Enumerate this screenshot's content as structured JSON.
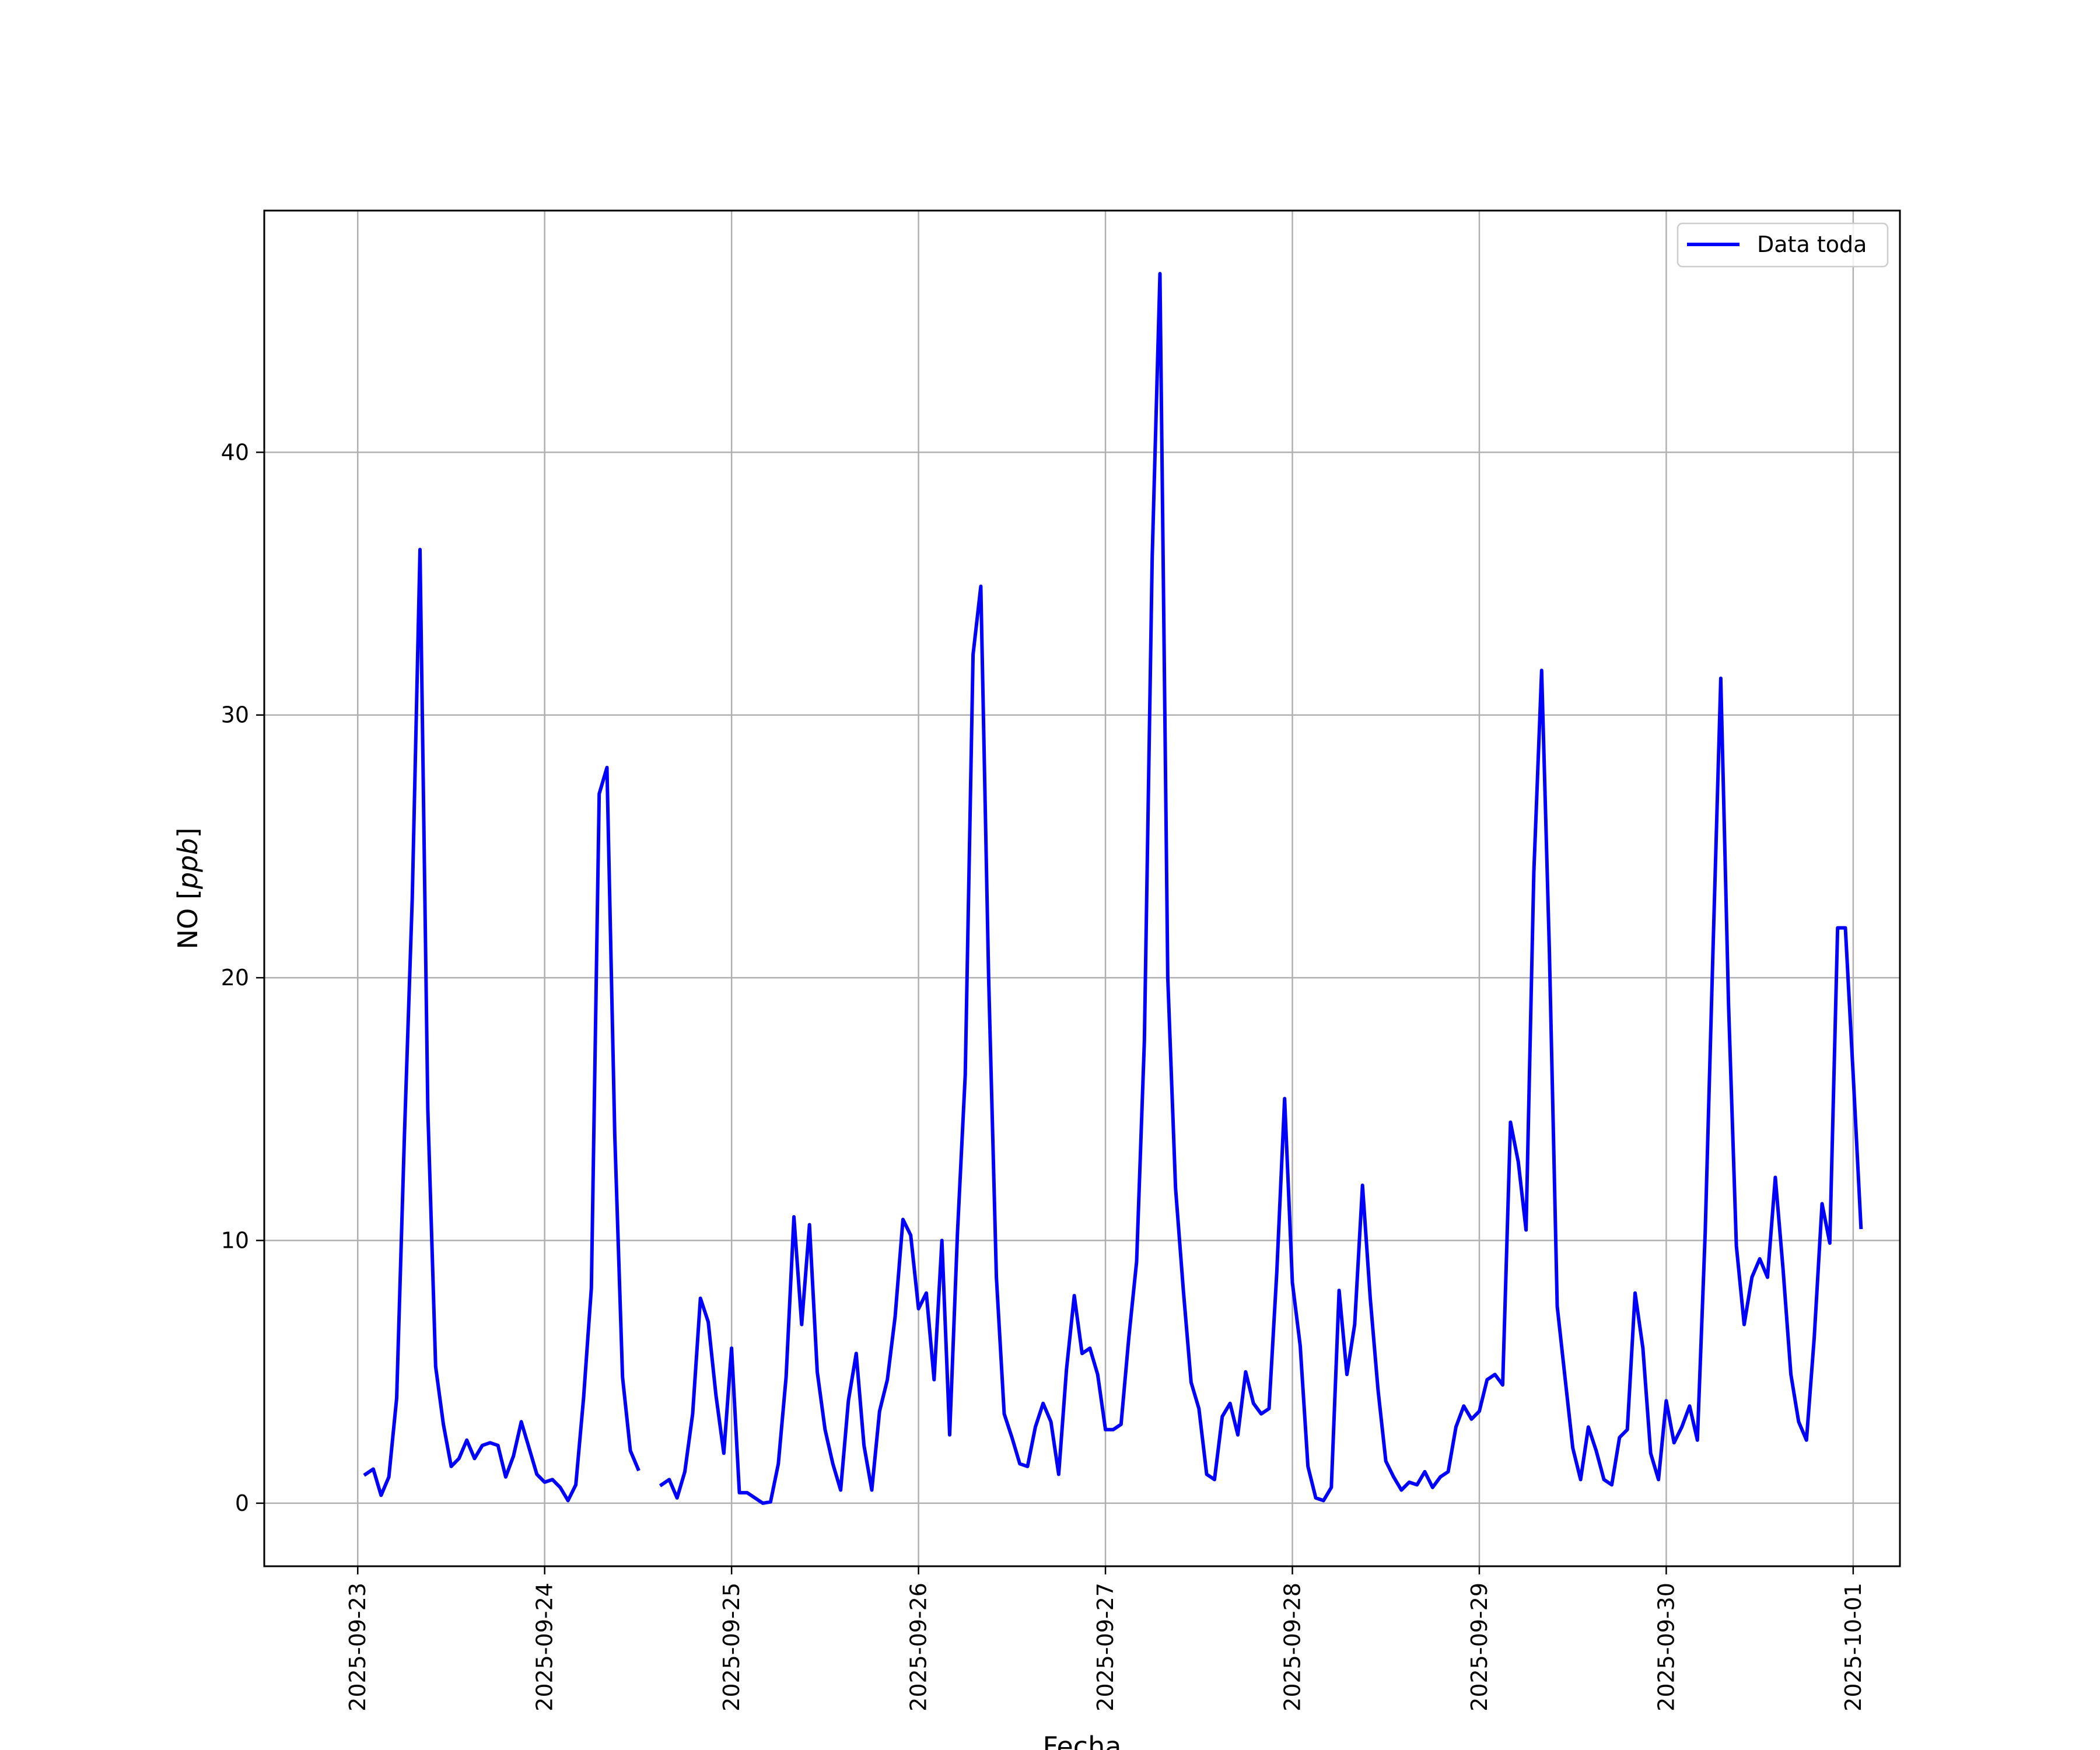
{
  "chart_data": {
    "type": "line",
    "xlabel": "Fecha",
    "ylabel": "NO [ppb]",
    "ylabel_main": "NO ",
    "ylabel_unit": "ppb",
    "xlim": [
      "2025-09-22 12:00",
      "2025-10-01 06:00"
    ],
    "ylim": [
      -2.4,
      49.2
    ],
    "x_ticks": [
      "2025-09-23",
      "2025-09-24",
      "2025-09-25",
      "2025-09-26",
      "2025-09-27",
      "2025-09-28",
      "2025-09-29",
      "2025-09-30",
      "2025-10-01"
    ],
    "y_ticks": [
      0,
      10,
      20,
      30,
      40
    ],
    "grid": true,
    "legend_position": "top-right",
    "series": [
      {
        "name": "Data toda",
        "color": "#0000ff",
        "start": "2025-09-23 01:00",
        "interval_hours": 1,
        "values": [
          1.1,
          1.3,
          0.3,
          1.0,
          4.0,
          14.0,
          23.0,
          36.3,
          15.0,
          5.2,
          3.0,
          1.4,
          1.7,
          2.4,
          1.7,
          2.2,
          2.3,
          2.2,
          1.0,
          1.8,
          3.1,
          2.1,
          1.1,
          0.8,
          0.9,
          0.6,
          0.1,
          0.7,
          4.0,
          8.2,
          27.0,
          28.0,
          14.0,
          4.8,
          2.0,
          1.3,
          null,
          null,
          0.7,
          0.9,
          0.2,
          1.2,
          3.4,
          7.8,
          6.9,
          4.1,
          1.9,
          5.9,
          0.4,
          0.4,
          0.2,
          0.0,
          0.05,
          1.5,
          4.8,
          10.9,
          6.8,
          10.6,
          5.0,
          2.8,
          1.5,
          0.5,
          3.9,
          5.7,
          2.2,
          0.5,
          3.5,
          4.7,
          7.1,
          10.8,
          10.2,
          7.4,
          8.0,
          4.7,
          10.0,
          2.6,
          10.3,
          16.3,
          32.3,
          34.9,
          20.0,
          8.6,
          3.4,
          2.5,
          1.5,
          1.4,
          2.9,
          3.8,
          3.1,
          1.1,
          5.1,
          7.9,
          5.7,
          5.9,
          4.9,
          2.8,
          2.8,
          3.0,
          6.3,
          9.2,
          17.6,
          36.0,
          46.8,
          20.0,
          12.0,
          8.1,
          4.6,
          3.6,
          1.1,
          0.9,
          3.3,
          3.8,
          2.6,
          5.0,
          3.8,
          3.4,
          3.6,
          8.8,
          15.4,
          8.4,
          6.0,
          1.4,
          0.2,
          0.1,
          0.6,
          8.1,
          4.9,
          6.8,
          12.1,
          7.8,
          4.3,
          1.6,
          1.0,
          0.5,
          0.8,
          0.7,
          1.2,
          0.6,
          1.0,
          1.2,
          2.9,
          3.7,
          3.2,
          3.5,
          4.7,
          4.9,
          4.5,
          14.5,
          13.0,
          10.4,
          24.0,
          31.7,
          21.0,
          7.5,
          4.8,
          2.1,
          0.9,
          2.9,
          2.0,
          0.9,
          0.7,
          2.5,
          2.8,
          8.0,
          5.9,
          1.9,
          0.9,
          3.9,
          2.3,
          2.9,
          3.7,
          2.4,
          10.3,
          21.0,
          31.4,
          19.0,
          9.8,
          6.8,
          8.6,
          9.3,
          8.6,
          12.4,
          8.9,
          4.9,
          3.1,
          2.4,
          6.3,
          11.4,
          9.9,
          21.9,
          21.9,
          16.3,
          10.5
        ]
      }
    ]
  }
}
